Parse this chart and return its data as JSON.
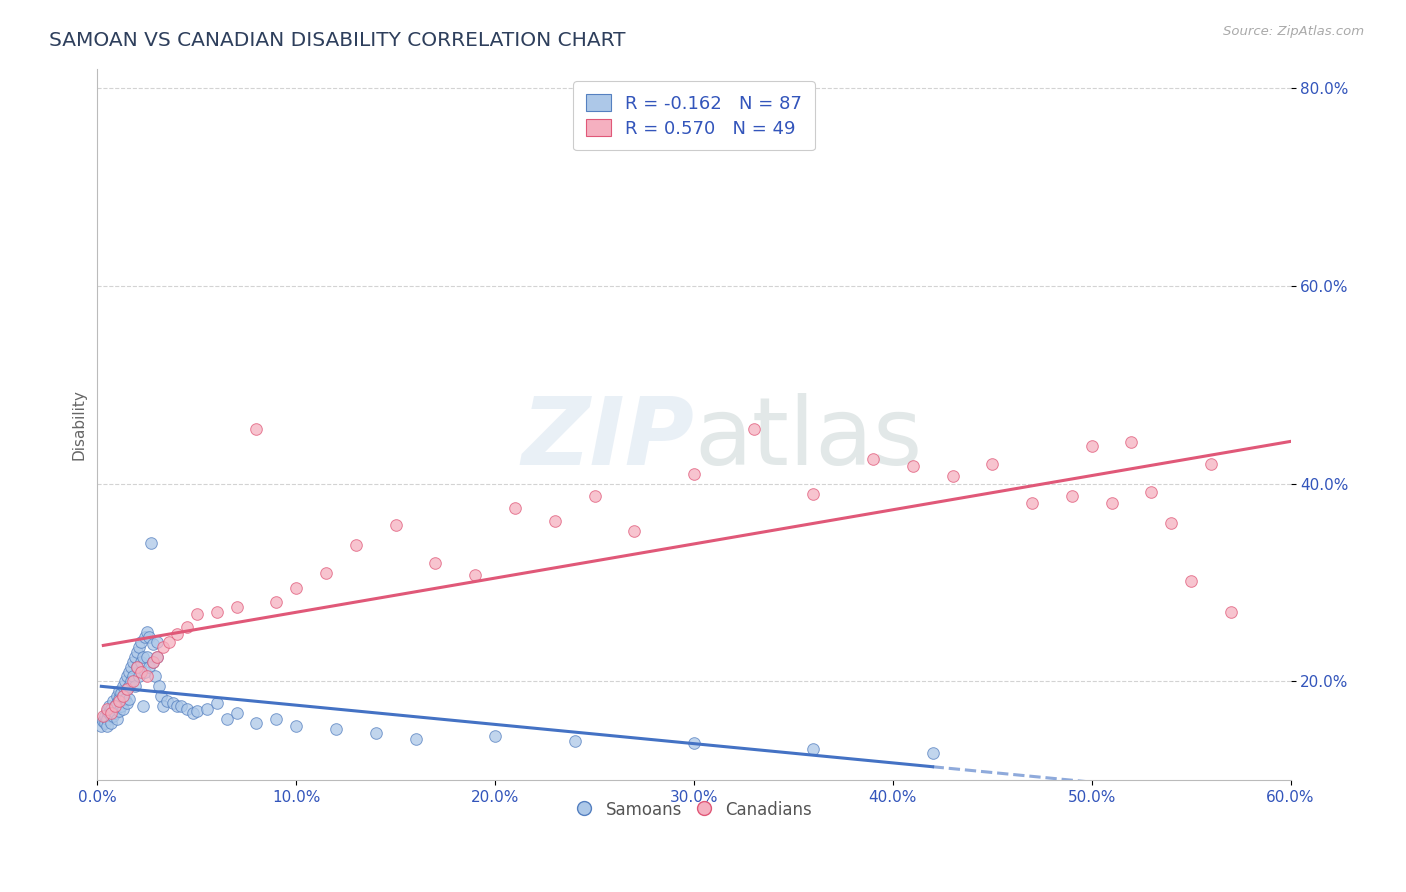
{
  "title": "SAMOAN VS CANADIAN DISABILITY CORRELATION CHART",
  "source": "Source: ZipAtlas.com",
  "ylabel": "Disability",
  "xlim": [
    0.0,
    0.6
  ],
  "ylim": [
    0.1,
    0.82
  ],
  "yticks": [
    0.2,
    0.4,
    0.6,
    0.8
  ],
  "ytick_labels": [
    "20.0%",
    "40.0%",
    "60.0%",
    "80.0%"
  ],
  "xticks": [
    0.0,
    0.1,
    0.2,
    0.3,
    0.4,
    0.5,
    0.6
  ],
  "xtick_labels": [
    "0.0%",
    "10.0%",
    "20.0%",
    "30.0%",
    "40.0%",
    "50.0%",
    "60.0%"
  ],
  "legend_line1": "R = -0.162   N = 87",
  "legend_line2": "R = 0.570   N = 49",
  "color_samoan_fill": "#adc8e8",
  "color_samoan_edge": "#5580c0",
  "color_canadian_fill": "#f5b0c0",
  "color_canadian_edge": "#e05878",
  "color_line_samoan": "#4472c4",
  "color_line_canadian": "#e05878",
  "watermark_text": "ZIPatlas",
  "title_color": "#2e3f5c",
  "label_color": "#3355bb",
  "tick_color": "#3355bb",
  "background_color": "#ffffff",
  "grid_color": "#c8c8c8",
  "samoans_x": [
    0.002,
    0.003,
    0.004,
    0.004,
    0.005,
    0.005,
    0.005,
    0.006,
    0.006,
    0.007,
    0.007,
    0.007,
    0.008,
    0.008,
    0.008,
    0.009,
    0.009,
    0.01,
    0.01,
    0.01,
    0.011,
    0.011,
    0.011,
    0.012,
    0.012,
    0.013,
    0.013,
    0.013,
    0.014,
    0.014,
    0.015,
    0.015,
    0.015,
    0.016,
    0.016,
    0.016,
    0.017,
    0.017,
    0.018,
    0.018,
    0.019,
    0.019,
    0.02,
    0.02,
    0.021,
    0.021,
    0.022,
    0.022,
    0.023,
    0.023,
    0.024,
    0.024,
    0.025,
    0.025,
    0.026,
    0.026,
    0.027,
    0.028,
    0.028,
    0.029,
    0.03,
    0.03,
    0.031,
    0.032,
    0.033,
    0.035,
    0.038,
    0.04,
    0.042,
    0.045,
    0.048,
    0.05,
    0.055,
    0.06,
    0.065,
    0.07,
    0.08,
    0.09,
    0.1,
    0.12,
    0.14,
    0.16,
    0.2,
    0.24,
    0.3,
    0.36,
    0.42
  ],
  "samoans_y": [
    0.155,
    0.16,
    0.158,
    0.165,
    0.162,
    0.17,
    0.155,
    0.168,
    0.175,
    0.165,
    0.172,
    0.158,
    0.18,
    0.17,
    0.165,
    0.175,
    0.168,
    0.185,
    0.178,
    0.162,
    0.19,
    0.182,
    0.17,
    0.188,
    0.175,
    0.195,
    0.185,
    0.172,
    0.2,
    0.182,
    0.205,
    0.192,
    0.178,
    0.21,
    0.195,
    0.182,
    0.215,
    0.2,
    0.22,
    0.205,
    0.225,
    0.195,
    0.23,
    0.215,
    0.235,
    0.205,
    0.24,
    0.22,
    0.175,
    0.225,
    0.245,
    0.21,
    0.25,
    0.225,
    0.245,
    0.215,
    0.34,
    0.238,
    0.22,
    0.205,
    0.24,
    0.225,
    0.195,
    0.185,
    0.175,
    0.18,
    0.178,
    0.175,
    0.175,
    0.172,
    0.168,
    0.17,
    0.172,
    0.178,
    0.162,
    0.168,
    0.158,
    0.162,
    0.155,
    0.152,
    0.148,
    0.142,
    0.145,
    0.14,
    0.138,
    0.132,
    0.128
  ],
  "canadians_x": [
    0.003,
    0.005,
    0.007,
    0.009,
    0.011,
    0.013,
    0.015,
    0.018,
    0.02,
    0.022,
    0.025,
    0.028,
    0.03,
    0.033,
    0.036,
    0.04,
    0.045,
    0.05,
    0.06,
    0.07,
    0.08,
    0.09,
    0.1,
    0.115,
    0.13,
    0.15,
    0.17,
    0.19,
    0.21,
    0.23,
    0.25,
    0.27,
    0.3,
    0.33,
    0.36,
    0.39,
    0.41,
    0.43,
    0.45,
    0.47,
    0.49,
    0.51,
    0.53,
    0.55,
    0.57,
    0.56,
    0.54,
    0.52,
    0.5
  ],
  "canadians_y": [
    0.165,
    0.172,
    0.168,
    0.175,
    0.18,
    0.185,
    0.192,
    0.2,
    0.215,
    0.21,
    0.205,
    0.22,
    0.225,
    0.235,
    0.24,
    0.248,
    0.255,
    0.268,
    0.27,
    0.275,
    0.455,
    0.28,
    0.295,
    0.31,
    0.338,
    0.358,
    0.32,
    0.308,
    0.375,
    0.362,
    0.388,
    0.352,
    0.41,
    0.455,
    0.39,
    0.425,
    0.418,
    0.408,
    0.42,
    0.38,
    0.388,
    0.38,
    0.392,
    0.302,
    0.27,
    0.42,
    0.36,
    0.442,
    0.438
  ],
  "samoan_line_solid_end": 0.42,
  "canadian_line_end": 0.6
}
